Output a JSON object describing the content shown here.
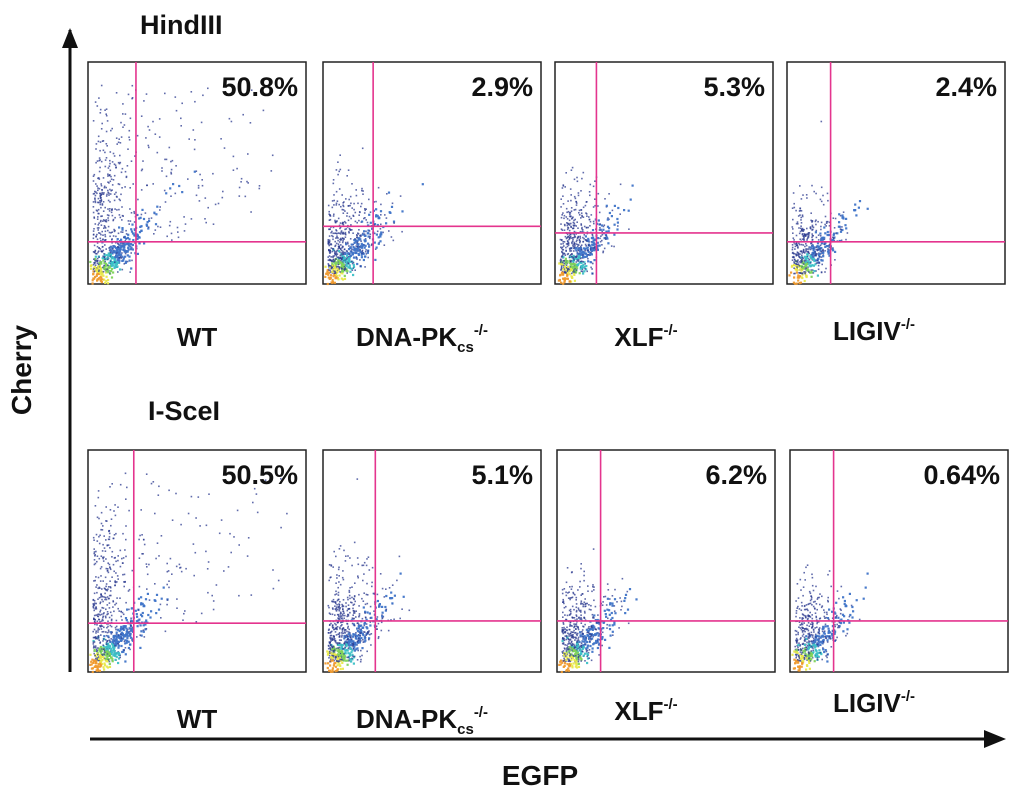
{
  "axes": {
    "x_label": "EGFP",
    "y_label": "Cherry"
  },
  "colors": {
    "gate": "#e4348e",
    "frame": "#222222",
    "dots_sparse": "#2b3a8f",
    "dots_dense": [
      "#3f74c8",
      "#3cc0c6",
      "#7fd35a",
      "#e8e84a",
      "#ef9a2e"
    ]
  },
  "rows": [
    {
      "title": "HindIII",
      "panels": [
        {
          "genotype": {
            "base": "WT",
            "sub": "",
            "sup": ""
          },
          "percent": "50.8%"
        },
        {
          "genotype": {
            "base": "DNA-PK",
            "sub": "cs",
            "sup": "-/-"
          },
          "percent": "2.9%"
        },
        {
          "genotype": {
            "base": "XLF",
            "sub": "",
            "sup": "-/-"
          },
          "percent": "5.3%"
        },
        {
          "genotype": {
            "base": "LIGIV",
            "sub": "",
            "sup": "-/-"
          },
          "percent": "2.4%"
        }
      ]
    },
    {
      "title": "I-SceI",
      "panels": [
        {
          "genotype": {
            "base": "WT",
            "sub": "",
            "sup": ""
          },
          "percent": "50.5%"
        },
        {
          "genotype": {
            "base": "DNA-PK",
            "sub": "cs",
            "sup": "-/-"
          },
          "percent": "5.1%"
        },
        {
          "genotype": {
            "base": "XLF",
            "sub": "",
            "sup": "-/-"
          },
          "percent": "6.2%"
        },
        {
          "genotype": {
            "base": "LIGIV",
            "sub": "",
            "sup": "-/-"
          },
          "percent": "0.64%"
        }
      ]
    }
  ],
  "chart_data": {
    "type": "scatter",
    "x_label": "EGFP",
    "y_label": "Cherry",
    "panels": [
      {
        "row": "HindIII",
        "genotype": "WT",
        "double_positive_percent": 50.8,
        "gate_x": 0.22,
        "gate_y": 0.19
      },
      {
        "row": "HindIII",
        "genotype": "DNA-PKcs-/-",
        "double_positive_percent": 2.9,
        "gate_x": 0.23,
        "gate_y": 0.26
      },
      {
        "row": "HindIII",
        "genotype": "XLF-/-",
        "double_positive_percent": 5.3,
        "gate_x": 0.19,
        "gate_y": 0.23
      },
      {
        "row": "HindIII",
        "genotype": "LIGIV-/-",
        "double_positive_percent": 2.4,
        "gate_x": 0.2,
        "gate_y": 0.19
      },
      {
        "row": "I-SceI",
        "genotype": "WT",
        "double_positive_percent": 50.5,
        "gate_x": 0.21,
        "gate_y": 0.22
      },
      {
        "row": "I-SceI",
        "genotype": "DNA-PKcs-/-",
        "double_positive_percent": 5.1,
        "gate_x": 0.24,
        "gate_y": 0.23
      },
      {
        "row": "I-SceI",
        "genotype": "XLF-/-",
        "double_positive_percent": 6.2,
        "gate_x": 0.2,
        "gate_y": 0.23
      },
      {
        "row": "I-SceI",
        "genotype": "LIGIV-/-",
        "double_positive_percent": 0.64,
        "gate_x": 0.2,
        "gate_y": 0.23
      }
    ]
  }
}
